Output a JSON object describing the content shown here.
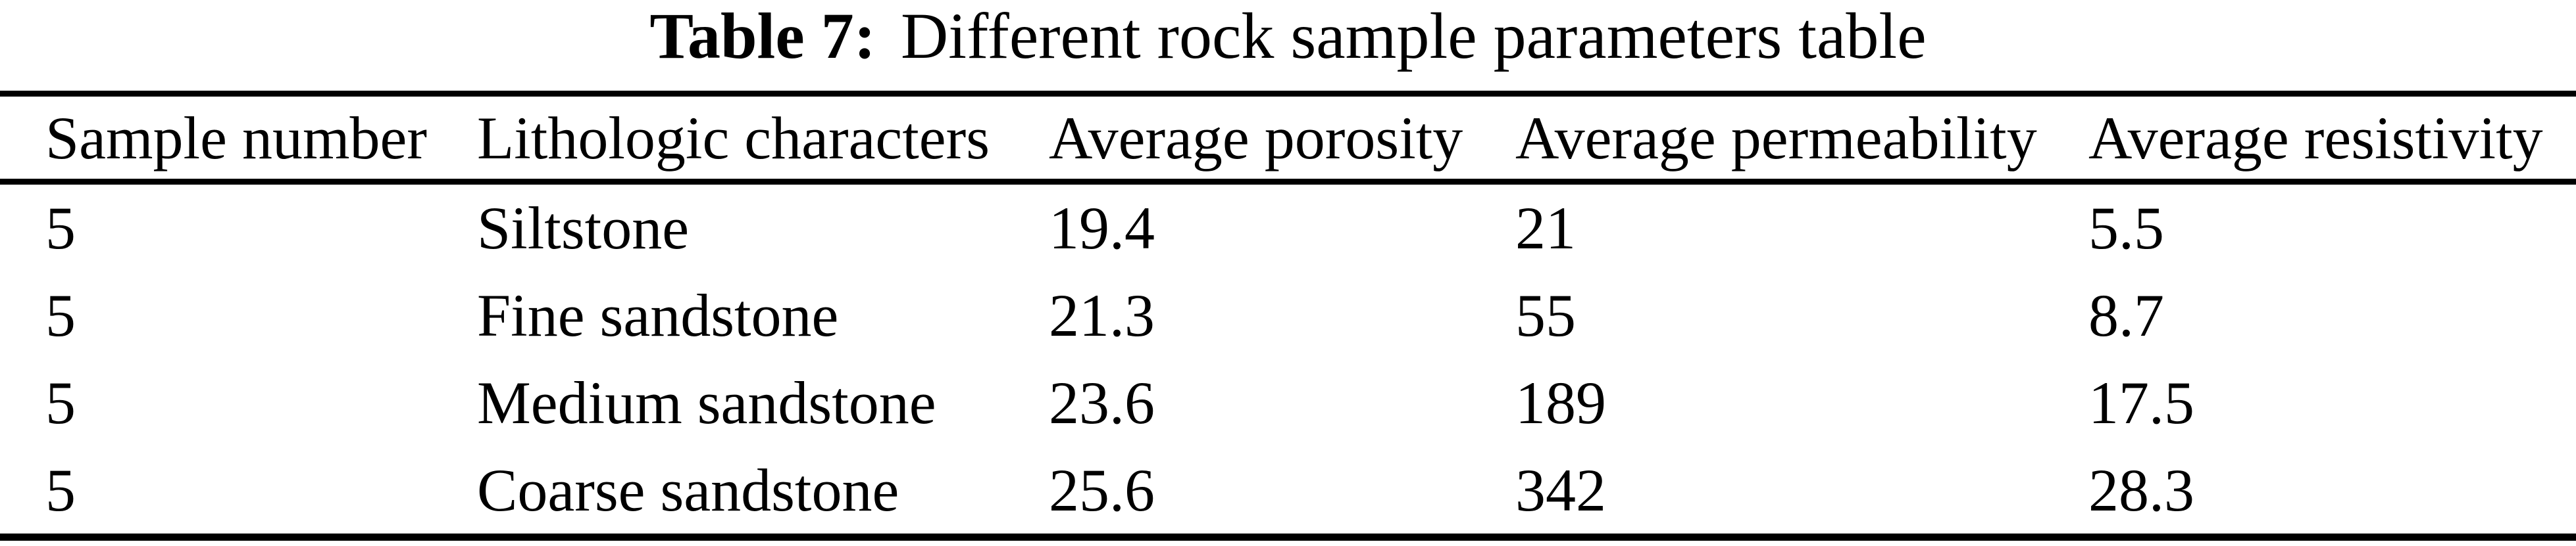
{
  "caption": {
    "label": "Table 7:",
    "text": "Different rock sample parameters table"
  },
  "table": {
    "columns": [
      "Sample number",
      "Lithologic characters",
      "Average porosity",
      "Average permeability",
      "Average resistivity"
    ],
    "rows": [
      [
        "5",
        "Siltstone",
        "19.4",
        "21",
        "5.5"
      ],
      [
        "5",
        "Fine sandstone",
        "21.3",
        "55",
        "8.7"
      ],
      [
        "5",
        "Medium sandstone",
        "23.6",
        "189",
        "17.5"
      ],
      [
        "5",
        "Coarse sandstone",
        "25.6",
        "342",
        "28.3"
      ]
    ]
  },
  "chart_data": {
    "type": "table",
    "title": "Table 7: Different rock sample parameters table",
    "columns": [
      "Sample number",
      "Lithologic characters",
      "Average porosity",
      "Average permeability",
      "Average resistivity"
    ],
    "rows": [
      [
        "5",
        "Siltstone",
        "19.4",
        "21",
        "5.5"
      ],
      [
        "5",
        "Fine sandstone",
        "21.3",
        "55",
        "8.7"
      ],
      [
        "5",
        "Medium sandstone",
        "23.6",
        "189",
        "17.5"
      ],
      [
        "5",
        "Coarse sandstone",
        "25.6",
        "342",
        "28.3"
      ]
    ]
  },
  "colors": {
    "text": "#000000",
    "background": "#ffffff",
    "rule": "#000000"
  }
}
